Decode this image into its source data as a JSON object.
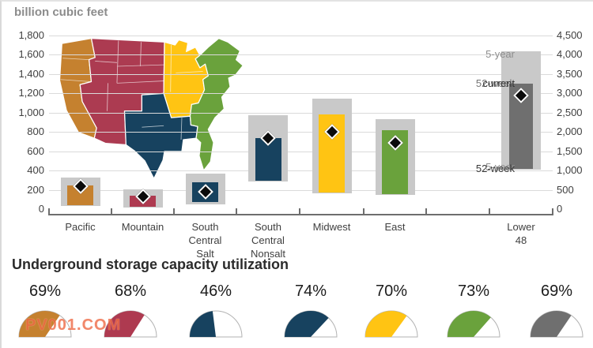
{
  "header": {
    "units_label": "billion cubic feet"
  },
  "watermark": "PV001.COM",
  "section": {
    "title": "Underground storage capacity utilization"
  },
  "colors": {
    "range_band": "#c9c9c9",
    "gridline": "#dadada",
    "axis_line": "#6e6e6e",
    "axis_text": "#404040",
    "marker": "#0b0b0b",
    "watermark": "#ee6a45"
  },
  "map": {
    "regions": [
      {
        "name": "Pacific",
        "color": "#c5812f"
      },
      {
        "name": "Mountain",
        "color": "#ac3b51"
      },
      {
        "name": "Midwest",
        "color": "#ffc413"
      },
      {
        "name": "South Central",
        "color": "#17425f"
      },
      {
        "name": "East",
        "color": "#6aa23c"
      }
    ]
  },
  "chart_data": {
    "type": "bar",
    "ylabel": "billion cubic feet",
    "grid": true,
    "left_axis": {
      "max": 1800,
      "step": 200,
      "labels": [
        "0",
        "200",
        "400",
        "600",
        "800",
        "1,000",
        "1,200",
        "1,400",
        "1,600",
        "1,800"
      ]
    },
    "right_axis": {
      "max": 4500,
      "step": 500,
      "labels": [
        "0",
        "500",
        "1,000",
        "1,500",
        "2,000",
        "2,500",
        "3,000",
        "3,500",
        "4,000",
        "4,500"
      ]
    },
    "regions": [
      {
        "name": "Pacific",
        "label_lines": [
          "Pacific"
        ],
        "color": "#c5812f",
        "axis": "left",
        "range_min": 35,
        "range_max": 330,
        "base": 38,
        "current": 245,
        "marker": 240,
        "utilization_label": "69%",
        "utilization_pct": 69
      },
      {
        "name": "Mountain",
        "label_lines": [
          "Mountain"
        ],
        "color": "#ae3a50",
        "axis": "left",
        "range_min": 20,
        "range_max": 205,
        "base": 25,
        "current": 140,
        "marker": 135,
        "utilization_label": "68%",
        "utilization_pct": 68
      },
      {
        "name": "South Central Salt",
        "label_lines": [
          "South",
          "Central",
          "Salt"
        ],
        "color": "#17425f",
        "axis": "left",
        "range_min": 45,
        "range_max": 370,
        "base": 70,
        "current": 280,
        "marker": 180,
        "utilization_label": "46%",
        "utilization_pct": 46
      },
      {
        "name": "South Central Nonsalt",
        "label_lines": [
          "South",
          "Central",
          "Nonsalt"
        ],
        "color": "#17425f",
        "axis": "left",
        "range_min": 290,
        "range_max": 970,
        "base": 295,
        "current": 735,
        "marker": 735,
        "utilization_label": "74%",
        "utilization_pct": 74
      },
      {
        "name": "Midwest",
        "label_lines": [
          "Midwest"
        ],
        "color": "#ffc413",
        "axis": "left",
        "range_min": 165,
        "range_max": 1145,
        "base": 172,
        "current": 980,
        "marker": 800,
        "utilization_label": "70%",
        "utilization_pct": 70
      },
      {
        "name": "East",
        "label_lines": [
          "East"
        ],
        "color": "#6aa23c",
        "axis": "left",
        "range_min": 150,
        "range_max": 930,
        "base": 155,
        "current": 820,
        "marker": 690,
        "utilization_label": "73%",
        "utilization_pct": 73
      },
      {
        "name": "Lower 48",
        "label_lines": [
          "Lower",
          "48"
        ],
        "color": "#6f6f6f",
        "axis": "right",
        "range_min": 1020,
        "range_max": 4090,
        "base": 1045,
        "current": 3250,
        "marker": 2950,
        "utilization_label": "69%",
        "utilization_pct": 69
      }
    ],
    "annotations": [
      {
        "text": "5-year",
        "value": 4000,
        "color": "#8e8e8e"
      },
      {
        "text": "52-week",
        "value": 3250,
        "color": "#757575"
      },
      {
        "text": "current",
        "value": 3245,
        "color": "#333333"
      },
      {
        "text": "5-year",
        "value": 1075,
        "color": "#8e8e8e"
      },
      {
        "text": "52-week",
        "value": 1050,
        "color": "#3a3a3a"
      }
    ]
  }
}
